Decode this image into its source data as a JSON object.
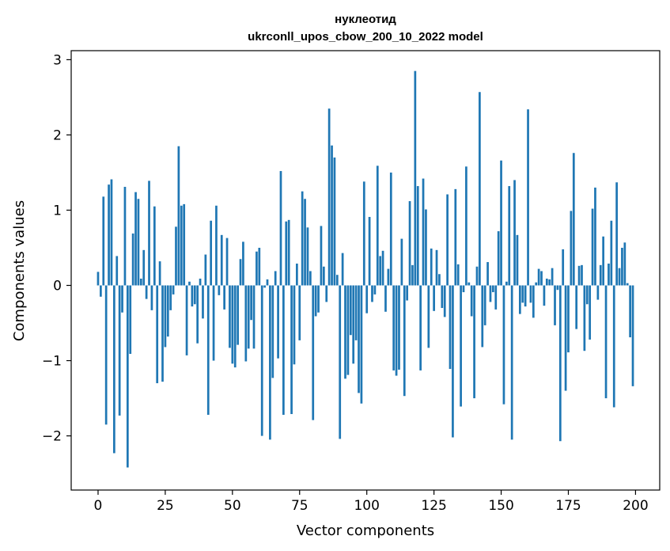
{
  "chart_data": {
    "type": "bar",
    "title_line1": "нуклеотид",
    "title_line2": "ukrconll_upos_cbow_200_10_2022 model",
    "xlabel": "Vector components",
    "ylabel": "Components values",
    "xlim": [
      -10,
      209
    ],
    "ylim": [
      -2.72,
      3.12
    ],
    "x_ticks": [
      0,
      25,
      50,
      75,
      100,
      125,
      150,
      175,
      200
    ],
    "y_ticks": [
      -2,
      -1,
      0,
      1,
      2,
      3
    ],
    "y_tick_labels": [
      "−2",
      "−1",
      "0",
      "1",
      "2",
      "3"
    ],
    "bar_color": "#1f77b4",
    "grid": false,
    "values": [
      0.18,
      -0.15,
      1.18,
      -1.85,
      1.34,
      1.41,
      -2.23,
      0.39,
      -1.73,
      -0.36,
      1.31,
      -2.42,
      -0.91,
      0.69,
      1.24,
      1.15,
      0.09,
      0.47,
      -0.18,
      1.39,
      -0.33,
      1.05,
      -1.3,
      0.32,
      -1.28,
      -0.82,
      -0.68,
      -0.33,
      -0.12,
      0.78,
      1.85,
      1.06,
      1.08,
      -0.93,
      0.05,
      -0.28,
      -0.25,
      -0.77,
      0.09,
      -0.44,
      0.41,
      -1.72,
      0.86,
      -1.0,
      1.06,
      -0.13,
      0.67,
      -0.32,
      0.63,
      -0.83,
      -1.04,
      -1.09,
      -0.79,
      0.35,
      0.58,
      -1.01,
      -0.84,
      -0.46,
      -0.84,
      0.45,
      0.5,
      -2.0,
      -0.03,
      0.08,
      -2.05,
      -1.23,
      0.19,
      -0.97,
      1.52,
      -1.72,
      0.85,
      0.87,
      -1.71,
      -1.05,
      0.29,
      -0.73,
      1.25,
      1.15,
      0.77,
      0.19,
      -1.79,
      -0.41,
      -0.36,
      0.79,
      0.25,
      -0.22,
      2.35,
      1.86,
      1.7,
      0.14,
      -2.04,
      0.43,
      -1.24,
      -1.19,
      -0.66,
      -1.04,
      -0.73,
      -1.43,
      -1.57,
      1.38,
      -0.37,
      0.91,
      -0.22,
      -0.12,
      1.59,
      0.39,
      0.46,
      -0.35,
      0.22,
      1.5,
      -1.13,
      -1.2,
      -1.12,
      0.62,
      -1.47,
      -0.2,
      1.12,
      0.27,
      2.85,
      1.32,
      -1.13,
      1.42,
      1.01,
      -0.83,
      0.49,
      -0.34,
      0.47,
      0.15,
      -0.3,
      -0.42,
      1.21,
      -1.11,
      -2.02,
      1.28,
      0.28,
      -1.61,
      -0.09,
      1.58,
      0.04,
      -0.41,
      -1.5,
      0.25,
      2.57,
      -0.82,
      -0.53,
      0.31,
      -0.22,
      -0.09,
      -0.32,
      0.72,
      1.66,
      -1.58,
      0.05,
      1.32,
      -2.05,
      1.4,
      0.67,
      -0.38,
      -0.23,
      -0.28,
      2.34,
      -0.23,
      -0.43,
      0.04,
      0.22,
      0.19,
      -0.27,
      0.09,
      0.08,
      0.23,
      -0.53,
      -0.06,
      -2.07,
      0.48,
      -1.4,
      -0.89,
      0.99,
      1.76,
      -0.58,
      0.26,
      0.27,
      -0.87,
      -0.25,
      -0.72,
      1.02,
      1.3,
      -0.19,
      0.27,
      0.65,
      -1.5,
      0.29,
      0.86,
      -1.62,
      1.37,
      0.23,
      0.5,
      0.57,
      0.03,
      -0.69,
      -1.34
    ]
  }
}
